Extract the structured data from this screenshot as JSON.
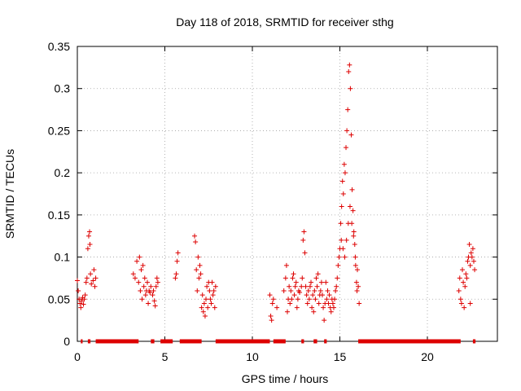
{
  "chart_data": {
    "type": "scatter",
    "title": "Day 118 of 2018, SRMTID for receiver sthg",
    "xlabel": "GPS time / hours",
    "ylabel": "SRMTID / TECUs",
    "xlim": [
      0,
      24
    ],
    "ylim": [
      0,
      0.35
    ],
    "xticks": [
      0,
      5,
      10,
      15,
      20
    ],
    "xtick_labels": [
      "0",
      "5",
      "10",
      "15",
      "20"
    ],
    "yticks": [
      0,
      0.05,
      0.1,
      0.15,
      0.2,
      0.25,
      0.3,
      0.35
    ],
    "ytick_labels": [
      "0",
      "0.05",
      "0.1",
      "0.15",
      "0.2",
      "0.25",
      "0.3",
      "0.35"
    ],
    "grid": true,
    "marker": "+",
    "color": "#dd0000",
    "series": [
      {
        "name": "SRMTID",
        "points": [
          [
            0.0,
            0.072
          ],
          [
            0.05,
            0.06
          ],
          [
            0.1,
            0.05
          ],
          [
            0.15,
            0.045
          ],
          [
            0.2,
            0.04
          ],
          [
            0.25,
            0.048
          ],
          [
            0.3,
            0.052
          ],
          [
            0.35,
            0.044
          ],
          [
            0.4,
            0.05
          ],
          [
            0.45,
            0.055
          ],
          [
            0.5,
            0.07
          ],
          [
            0.55,
            0.075
          ],
          [
            0.6,
            0.11
          ],
          [
            0.65,
            0.125
          ],
          [
            0.7,
            0.13
          ],
          [
            0.72,
            0.115
          ],
          [
            0.75,
            0.08
          ],
          [
            0.8,
            0.068
          ],
          [
            0.9,
            0.072
          ],
          [
            0.95,
            0.085
          ],
          [
            1.0,
            0.065
          ],
          [
            1.05,
            0.075
          ],
          [
            3.2,
            0.08
          ],
          [
            3.3,
            0.075
          ],
          [
            3.4,
            0.095
          ],
          [
            3.5,
            0.07
          ],
          [
            3.55,
            0.1
          ],
          [
            3.6,
            0.06
          ],
          [
            3.65,
            0.085
          ],
          [
            3.7,
            0.05
          ],
          [
            3.75,
            0.09
          ],
          [
            3.8,
            0.065
          ],
          [
            3.85,
            0.075
          ],
          [
            3.9,
            0.055
          ],
          [
            3.95,
            0.06
          ],
          [
            4.0,
            0.07
          ],
          [
            4.05,
            0.045
          ],
          [
            4.1,
            0.06
          ],
          [
            4.15,
            0.058
          ],
          [
            4.2,
            0.065
          ],
          [
            4.3,
            0.055
          ],
          [
            4.35,
            0.06
          ],
          [
            4.4,
            0.048
          ],
          [
            4.45,
            0.042
          ],
          [
            4.5,
            0.065
          ],
          [
            4.55,
            0.075
          ],
          [
            4.6,
            0.07
          ],
          [
            5.6,
            0.075
          ],
          [
            5.65,
            0.08
          ],
          [
            5.7,
            0.095
          ],
          [
            5.75,
            0.105
          ],
          [
            6.7,
            0.125
          ],
          [
            6.75,
            0.118
          ],
          [
            6.8,
            0.085
          ],
          [
            6.85,
            0.06
          ],
          [
            6.9,
            0.1
          ],
          [
            6.95,
            0.075
          ],
          [
            7.0,
            0.09
          ],
          [
            7.05,
            0.08
          ],
          [
            7.1,
            0.04
          ],
          [
            7.15,
            0.055
          ],
          [
            7.2,
            0.035
          ],
          [
            7.25,
            0.045
          ],
          [
            7.3,
            0.03
          ],
          [
            7.35,
            0.05
          ],
          [
            7.4,
            0.065
          ],
          [
            7.45,
            0.04
          ],
          [
            7.5,
            0.07
          ],
          [
            7.55,
            0.06
          ],
          [
            7.6,
            0.05
          ],
          [
            7.65,
            0.045
          ],
          [
            7.7,
            0.07
          ],
          [
            7.75,
            0.055
          ],
          [
            7.8,
            0.06
          ],
          [
            7.85,
            0.04
          ],
          [
            7.9,
            0.065
          ],
          [
            11.0,
            0.055
          ],
          [
            11.05,
            0.03
          ],
          [
            11.1,
            0.025
          ],
          [
            11.15,
            0.045
          ],
          [
            11.2,
            0.05
          ],
          [
            11.4,
            0.04
          ],
          [
            11.8,
            0.06
          ],
          [
            11.9,
            0.075
          ],
          [
            11.95,
            0.09
          ],
          [
            12.0,
            0.035
          ],
          [
            12.05,
            0.05
          ],
          [
            12.1,
            0.065
          ],
          [
            12.15,
            0.045
          ],
          [
            12.2,
            0.06
          ],
          [
            12.25,
            0.05
          ],
          [
            12.3,
            0.075
          ],
          [
            12.35,
            0.08
          ],
          [
            12.4,
            0.055
          ],
          [
            12.45,
            0.065
          ],
          [
            12.5,
            0.07
          ],
          [
            12.55,
            0.04
          ],
          [
            12.6,
            0.05
          ],
          [
            12.65,
            0.06
          ],
          [
            12.7,
            0.058
          ],
          [
            12.8,
            0.065
          ],
          [
            12.85,
            0.075
          ],
          [
            12.9,
            0.12
          ],
          [
            12.95,
            0.13
          ],
          [
            13.0,
            0.105
          ],
          [
            13.05,
            0.065
          ],
          [
            13.1,
            0.055
          ],
          [
            13.15,
            0.045
          ],
          [
            13.2,
            0.06
          ],
          [
            13.25,
            0.05
          ],
          [
            13.3,
            0.065
          ],
          [
            13.35,
            0.07
          ],
          [
            13.4,
            0.04
          ],
          [
            13.45,
            0.055
          ],
          [
            13.5,
            0.035
          ],
          [
            13.55,
            0.06
          ],
          [
            13.6,
            0.05
          ],
          [
            13.65,
            0.075
          ],
          [
            13.7,
            0.065
          ],
          [
            13.75,
            0.08
          ],
          [
            13.8,
            0.045
          ],
          [
            13.85,
            0.055
          ],
          [
            13.9,
            0.06
          ],
          [
            13.95,
            0.07
          ],
          [
            14.0,
            0.055
          ],
          [
            14.05,
            0.04
          ],
          [
            14.1,
            0.025
          ],
          [
            14.15,
            0.045
          ],
          [
            14.2,
            0.07
          ],
          [
            14.25,
            0.05
          ],
          [
            14.3,
            0.06
          ],
          [
            14.35,
            0.045
          ],
          [
            14.4,
            0.055
          ],
          [
            14.45,
            0.04
          ],
          [
            14.5,
            0.035
          ],
          [
            14.55,
            0.05
          ],
          [
            14.6,
            0.045
          ],
          [
            14.65,
            0.04
          ],
          [
            14.7,
            0.05
          ],
          [
            14.75,
            0.06
          ],
          [
            14.8,
            0.065
          ],
          [
            14.85,
            0.075
          ],
          [
            14.9,
            0.09
          ],
          [
            14.95,
            0.1
          ],
          [
            15.0,
            0.11
          ],
          [
            15.05,
            0.14
          ],
          [
            15.1,
            0.16
          ],
          [
            15.15,
            0.19
          ],
          [
            15.2,
            0.175
          ],
          [
            15.25,
            0.21
          ],
          [
            15.3,
            0.2
          ],
          [
            15.35,
            0.23
          ],
          [
            15.4,
            0.25
          ],
          [
            15.45,
            0.275
          ],
          [
            15.5,
            0.32
          ],
          [
            15.55,
            0.328
          ],
          [
            15.6,
            0.3
          ],
          [
            15.65,
            0.245
          ],
          [
            15.7,
            0.18
          ],
          [
            15.75,
            0.155
          ],
          [
            15.8,
            0.13
          ],
          [
            15.85,
            0.115
          ],
          [
            15.9,
            0.09
          ],
          [
            15.95,
            0.07
          ],
          [
            16.0,
            0.085
          ],
          [
            16.05,
            0.065
          ],
          [
            16.1,
            0.045
          ],
          [
            15.08,
            0.12
          ],
          [
            15.18,
            0.11
          ],
          [
            15.28,
            0.1
          ],
          [
            15.38,
            0.12
          ],
          [
            15.48,
            0.14
          ],
          [
            15.58,
            0.16
          ],
          [
            15.68,
            0.14
          ],
          [
            15.78,
            0.125
          ],
          [
            15.88,
            0.1
          ],
          [
            15.98,
            0.06
          ],
          [
            21.8,
            0.06
          ],
          [
            21.85,
            0.075
          ],
          [
            21.9,
            0.05
          ],
          [
            21.95,
            0.045
          ],
          [
            22.0,
            0.085
          ],
          [
            22.05,
            0.07
          ],
          [
            22.1,
            0.04
          ],
          [
            22.15,
            0.065
          ],
          [
            22.2,
            0.08
          ],
          [
            22.25,
            0.075
          ],
          [
            22.3,
            0.095
          ],
          [
            22.35,
            0.1
          ],
          [
            22.4,
            0.115
          ],
          [
            22.45,
            0.09
          ],
          [
            22.5,
            0.105
          ],
          [
            22.55,
            0.1
          ],
          [
            22.6,
            0.11
          ],
          [
            22.65,
            0.095
          ],
          [
            22.7,
            0.085
          ],
          [
            22.45,
            0.045
          ]
        ]
      },
      {
        "name": "zero",
        "segments": [
          [
            0.2,
            0.3
          ],
          [
            0.6,
            0.75
          ],
          [
            1.05,
            3.5
          ],
          [
            4.2,
            4.4
          ],
          [
            4.75,
            5.45
          ],
          [
            5.85,
            7.1
          ],
          [
            7.9,
            11.0
          ],
          [
            11.2,
            11.9
          ],
          [
            12.8,
            12.95
          ],
          [
            13.5,
            13.7
          ],
          [
            14.1,
            14.25
          ],
          [
            16.05,
            21.9
          ],
          [
            22.6,
            22.75
          ]
        ]
      }
    ]
  }
}
